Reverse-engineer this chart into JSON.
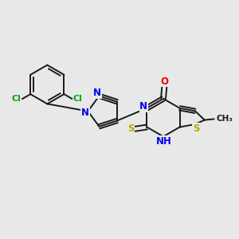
{
  "bg_color": "#e8e8e8",
  "bond_color": "#1a1a1a",
  "bond_width": 1.4,
  "atom_colors": {
    "C": "#1a1a1a",
    "N": "#0000ee",
    "O": "#ee0000",
    "S": "#bbaa00",
    "Cl": "#00aa00",
    "H": "#0000ee"
  },
  "font_size": 8.5
}
